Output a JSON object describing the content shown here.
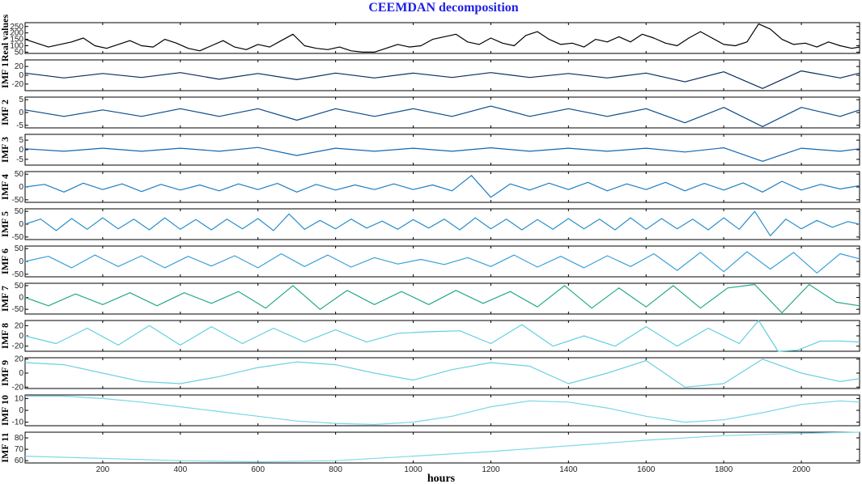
{
  "chart_data": {
    "type": "line",
    "title": "CEEMDAN decomposition",
    "xlabel": "hours",
    "xlim": [
      0,
      2150
    ],
    "x_ticks": [
      200,
      400,
      600,
      800,
      1000,
      1200,
      1400,
      1600,
      1800,
      2000
    ],
    "x_tick_labels": [
      "200",
      "400",
      "600",
      "800",
      "1000",
      "1200",
      "1400",
      "1600",
      "1800",
      "2000"
    ],
    "panels": [
      {
        "name": "Real values",
        "ylabel": "Real values",
        "ylim": [
          40,
          280
        ],
        "yticks": [
          50,
          100,
          150,
          200,
          250
        ],
        "ytick_labels": [
          "50",
          "100",
          "150",
          "200",
          "250"
        ],
        "color": "#000000",
        "x": [
          0,
          30,
          60,
          90,
          120,
          150,
          180,
          210,
          240,
          270,
          300,
          330,
          360,
          390,
          420,
          450,
          480,
          510,
          540,
          570,
          600,
          630,
          660,
          690,
          720,
          750,
          780,
          810,
          840,
          870,
          900,
          930,
          960,
          990,
          1020,
          1050,
          1080,
          1110,
          1140,
          1170,
          1200,
          1230,
          1260,
          1290,
          1320,
          1350,
          1380,
          1410,
          1440,
          1470,
          1500,
          1530,
          1560,
          1590,
          1620,
          1650,
          1680,
          1710,
          1740,
          1770,
          1800,
          1830,
          1860,
          1890,
          1920,
          1950,
          1980,
          2010,
          2040,
          2070,
          2100,
          2130,
          2150
        ],
        "y": [
          150,
          120,
          90,
          110,
          130,
          160,
          100,
          80,
          110,
          140,
          100,
          90,
          150,
          120,
          80,
          60,
          100,
          140,
          90,
          70,
          110,
          90,
          140,
          190,
          100,
          80,
          70,
          90,
          60,
          50,
          50,
          80,
          110,
          90,
          100,
          150,
          170,
          190,
          130,
          110,
          160,
          120,
          100,
          180,
          210,
          150,
          110,
          120,
          90,
          150,
          130,
          170,
          130,
          190,
          160,
          120,
          100,
          160,
          210,
          160,
          110,
          100,
          130,
          270,
          230,
          150,
          110,
          120,
          90,
          130,
          100,
          80,
          90
        ]
      },
      {
        "name": "IMF 1",
        "ylabel": "IMF 1",
        "ylim": [
          -35,
          35
        ],
        "yticks": [
          -20,
          0,
          20
        ],
        "ytick_labels": [
          "-20",
          "0",
          "20"
        ],
        "color": "#0a2d5c",
        "x": [
          0,
          100,
          200,
          300,
          400,
          500,
          600,
          700,
          800,
          900,
          1000,
          1100,
          1200,
          1300,
          1400,
          1500,
          1600,
          1700,
          1800,
          1900,
          2000,
          2100,
          2150
        ],
        "y": [
          5,
          -6,
          4,
          -5,
          6,
          -9,
          4,
          -10,
          5,
          -6,
          5,
          -5,
          6,
          -5,
          4,
          -6,
          5,
          -15,
          8,
          -30,
          10,
          -6,
          5
        ]
      },
      {
        "name": "IMF 2",
        "ylabel": "IMF 2",
        "ylim": [
          -6,
          6
        ],
        "yticks": [
          -5,
          0,
          5
        ],
        "ytick_labels": [
          "-5",
          "0",
          "5"
        ],
        "color": "#0c4a8a",
        "x": [
          0,
          100,
          200,
          300,
          400,
          500,
          600,
          700,
          800,
          900,
          1000,
          1100,
          1200,
          1300,
          1400,
          1500,
          1600,
          1700,
          1800,
          1900,
          2000,
          2100,
          2150
        ],
        "y": [
          1,
          -1.5,
          1,
          -1.5,
          1.5,
          -1.5,
          1.5,
          -3,
          1.5,
          -1.5,
          1.5,
          -1.5,
          2.5,
          -1.5,
          1.5,
          -1.5,
          1.5,
          -4,
          2,
          -5.5,
          2,
          -1.5,
          1
        ]
      },
      {
        "name": "IMF 3",
        "ylabel": "IMF 3",
        "ylim": [
          -8,
          8
        ],
        "yticks": [
          -5,
          0,
          5
        ],
        "ytick_labels": [
          "-5",
          "0",
          "5"
        ],
        "color": "#1566b0",
        "x": [
          0,
          100,
          200,
          300,
          400,
          500,
          600,
          700,
          800,
          900,
          1000,
          1100,
          1200,
          1300,
          1400,
          1500,
          1600,
          1700,
          1800,
          1900,
          2000,
          2100,
          2150
        ],
        "y": [
          0.5,
          -0.8,
          0.8,
          -0.8,
          0.8,
          -0.8,
          1.2,
          -3,
          0.8,
          -0.8,
          0.8,
          -0.8,
          1,
          -0.8,
          0.8,
          -0.8,
          0.8,
          -1.2,
          1,
          -6,
          0.8,
          -0.8,
          0.5
        ]
      },
      {
        "name": "IMF 4",
        "ylabel": "IMF 4",
        "ylim": [
          -60,
          60
        ],
        "yticks": [
          -50,
          0,
          50
        ],
        "ytick_labels": [
          "-50",
          "0",
          "50"
        ],
        "color": "#1f7fc4",
        "x": [
          0,
          50,
          100,
          150,
          200,
          250,
          300,
          350,
          400,
          450,
          500,
          550,
          600,
          650,
          700,
          750,
          800,
          850,
          900,
          950,
          1000,
          1050,
          1100,
          1150,
          1200,
          1250,
          1300,
          1350,
          1400,
          1450,
          1500,
          1550,
          1600,
          1650,
          1700,
          1750,
          1800,
          1850,
          1900,
          1950,
          2000,
          2050,
          2100,
          2150
        ],
        "y": [
          0,
          10,
          -20,
          15,
          -10,
          12,
          -18,
          10,
          -12,
          8,
          -15,
          12,
          -10,
          14,
          -20,
          10,
          -12,
          8,
          -10,
          12,
          -10,
          8,
          -15,
          45,
          -40,
          12,
          -12,
          15,
          -10,
          18,
          -15,
          12,
          -10,
          18,
          -15,
          14,
          -12,
          16,
          -20,
          22,
          -12,
          10,
          -8,
          5
        ]
      },
      {
        "name": "IMF 5",
        "ylabel": "IMF 5",
        "ylim": [
          -60,
          60
        ],
        "yticks": [
          -50,
          0,
          50
        ],
        "ytick_labels": [
          "-50",
          "0",
          "50"
        ],
        "color": "#2a8fcc",
        "x": [
          0,
          40,
          80,
          120,
          160,
          200,
          240,
          280,
          320,
          360,
          400,
          440,
          480,
          520,
          560,
          600,
          640,
          680,
          720,
          760,
          800,
          840,
          880,
          920,
          960,
          1000,
          1040,
          1080,
          1120,
          1160,
          1200,
          1240,
          1280,
          1320,
          1360,
          1400,
          1440,
          1480,
          1520,
          1560,
          1600,
          1640,
          1680,
          1720,
          1760,
          1800,
          1840,
          1880,
          1920,
          1960,
          2000,
          2040,
          2080,
          2120,
          2150
        ],
        "y": [
          0,
          20,
          -25,
          22,
          -20,
          25,
          -18,
          20,
          -22,
          25,
          -20,
          18,
          -22,
          20,
          -18,
          22,
          -25,
          40,
          -20,
          15,
          -18,
          20,
          -15,
          12,
          -20,
          18,
          -15,
          20,
          -22,
          25,
          -18,
          20,
          -22,
          18,
          -20,
          22,
          -18,
          20,
          -22,
          25,
          -20,
          22,
          -18,
          20,
          -22,
          25,
          -20,
          50,
          -45,
          20,
          -18,
          15,
          -12,
          10,
          0
        ]
      },
      {
        "name": "IMF 6",
        "ylabel": "IMF 6",
        "ylim": [
          -60,
          60
        ],
        "yticks": [
          -50,
          0,
          50
        ],
        "ytick_labels": [
          "-50",
          "0",
          "50"
        ],
        "color": "#3aa0d8",
        "x": [
          0,
          60,
          120,
          180,
          240,
          300,
          360,
          420,
          480,
          540,
          600,
          660,
          720,
          780,
          840,
          900,
          960,
          1020,
          1080,
          1140,
          1200,
          1260,
          1320,
          1380,
          1440,
          1500,
          1560,
          1620,
          1680,
          1740,
          1800,
          1860,
          1920,
          1980,
          2040,
          2100,
          2150
        ],
        "y": [
          0,
          20,
          -25,
          25,
          -20,
          22,
          -25,
          20,
          -18,
          22,
          -25,
          30,
          -20,
          25,
          -22,
          15,
          -10,
          8,
          -12,
          15,
          -20,
          25,
          -22,
          20,
          -25,
          22,
          -20,
          30,
          -35,
          35,
          -40,
          38,
          -30,
          35,
          -45,
          30,
          10
        ]
      },
      {
        "name": "IMF 7",
        "ylabel": "IMF 7",
        "ylim": [
          -70,
          60
        ],
        "yticks": [
          -50,
          0,
          50
        ],
        "ytick_labels": [
          "-50",
          "0",
          "50"
        ],
        "color": "#26a98a",
        "x": [
          0,
          60,
          130,
          200,
          270,
          340,
          410,
          480,
          550,
          620,
          690,
          760,
          830,
          900,
          970,
          1040,
          1110,
          1180,
          1250,
          1320,
          1390,
          1460,
          1530,
          1600,
          1670,
          1740,
          1810,
          1880,
          1950,
          2020,
          2090,
          2150
        ],
        "y": [
          0,
          -35,
          15,
          -30,
          20,
          -35,
          20,
          -25,
          25,
          -45,
          50,
          -50,
          30,
          -30,
          25,
          -30,
          30,
          -25,
          25,
          -40,
          50,
          -45,
          40,
          -40,
          50,
          -45,
          40,
          55,
          -65,
          55,
          -20,
          -35
        ]
      },
      {
        "name": "IMF 8",
        "ylabel": "IMF 8",
        "ylim": [
          -30,
          30
        ],
        "yticks": [
          -20,
          0,
          20
        ],
        "ytick_labels": [
          "-20",
          "0",
          "20"
        ],
        "color": "#63cfe0",
        "x": [
          0,
          80,
          160,
          240,
          320,
          400,
          480,
          560,
          640,
          720,
          800,
          880,
          960,
          1040,
          1120,
          1200,
          1280,
          1360,
          1440,
          1520,
          1600,
          1680,
          1760,
          1840,
          1890,
          1940,
          1990,
          2050,
          2100,
          2150
        ],
        "y": [
          0,
          -15,
          15,
          -18,
          20,
          -18,
          18,
          -15,
          15,
          -12,
          12,
          -12,
          5,
          8,
          10,
          -15,
          22,
          -20,
          0,
          -20,
          18,
          -20,
          15,
          -15,
          30,
          -30,
          -28,
          -10,
          -10,
          -12
        ]
      },
      {
        "name": "IMF 9",
        "ylabel": "IMF 9",
        "ylim": [
          -22,
          22
        ],
        "yticks": [
          -20,
          0,
          20
        ],
        "ytick_labels": [
          "-20",
          "0",
          "20"
        ],
        "color": "#6bd0e0",
        "x": [
          0,
          100,
          200,
          300,
          400,
          500,
          600,
          700,
          800,
          900,
          1000,
          1100,
          1200,
          1300,
          1400,
          1500,
          1600,
          1700,
          1800,
          1900,
          2000,
          2100,
          2150
        ],
        "y": [
          15,
          12,
          0,
          -12,
          -15,
          -5,
          8,
          16,
          12,
          0,
          -10,
          5,
          15,
          10,
          -15,
          0,
          18,
          -20,
          -15,
          20,
          0,
          -12,
          -8
        ]
      },
      {
        "name": "IMF 10",
        "ylabel": "IMF 10",
        "ylim": [
          -13,
          13
        ],
        "yticks": [
          -10,
          0,
          10
        ],
        "ytick_labels": [
          "-10",
          "0",
          "10"
        ],
        "color": "#78d6e3",
        "x": [
          0,
          100,
          200,
          300,
          400,
          500,
          600,
          700,
          800,
          900,
          1000,
          1100,
          1200,
          1300,
          1400,
          1500,
          1600,
          1700,
          1800,
          1900,
          2000,
          2100,
          2150
        ],
        "y": [
          12,
          12,
          10,
          7,
          3,
          -1,
          -5,
          -9,
          -11,
          -12,
          -10,
          -5,
          3,
          8,
          7,
          2,
          -5,
          -10,
          -8,
          -2,
          5,
          8,
          7
        ]
      },
      {
        "name": "IMF 11",
        "ylabel": "IMF 11",
        "ylim": [
          58,
          85
        ],
        "yticks": [
          60,
          70,
          80
        ],
        "ytick_labels": [
          "60",
          "70",
          "80"
        ],
        "color": "#7fd9e6",
        "x": [
          0,
          200,
          400,
          600,
          800,
          1000,
          1200,
          1400,
          1600,
          1800,
          2000,
          2150
        ],
        "y": [
          64,
          62,
          60,
          59,
          60,
          64,
          68,
          73,
          78,
          82,
          84,
          85
        ]
      }
    ]
  }
}
